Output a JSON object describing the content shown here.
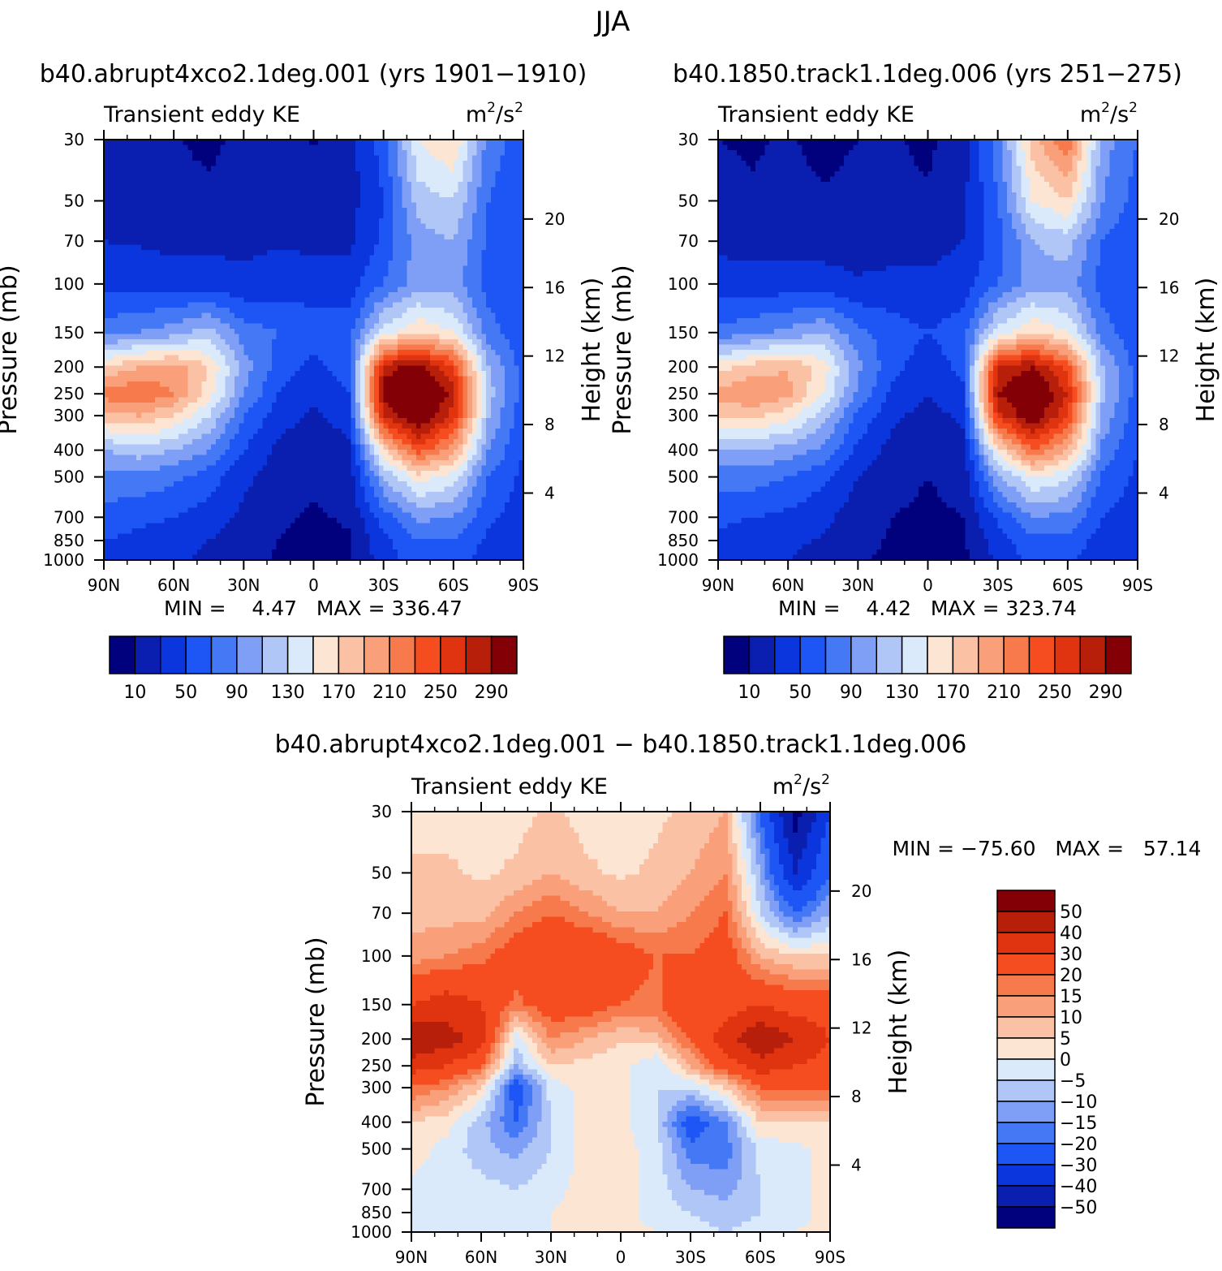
{
  "figure_title": "JJA",
  "chart_data": [
    {
      "id": "panel-a",
      "type": "heatmap",
      "title": "b40.abrupt4xco2.1deg.001 (yrs 1901−1910)",
      "left_label": "Transient eddy KE",
      "units_base": "m",
      "units_sup1": "2",
      "units_mid": "/s",
      "units_sup2": "2",
      "ylabel": "Pressure (mb)",
      "ylabel_right": "Height (km)",
      "x_ticks": [
        "90N",
        "60N",
        "30N",
        "0",
        "30S",
        "60S",
        "90S"
      ],
      "y_ticks": [
        30,
        50,
        70,
        100,
        150,
        200,
        250,
        300,
        400,
        500,
        700,
        850,
        1000
      ],
      "height_ticks": [
        4,
        8,
        12,
        16,
        20
      ],
      "stats": "MIN =    4.47   MAX = 336.47",
      "field": {
        "x_lat": [
          90,
          75,
          60,
          45,
          30,
          15,
          0,
          -15,
          -30,
          -45,
          -60,
          -75,
          -90
        ],
        "p_levels": [
          30,
          50,
          70,
          100,
          150,
          200,
          250,
          300,
          400,
          500,
          700,
          850,
          1000
        ],
        "values": [
          [
            15,
            10,
            12,
            5,
            15,
            22,
            8,
            20,
            60,
            150,
            170,
            80,
            60
          ],
          [
            20,
            18,
            15,
            15,
            20,
            25,
            18,
            22,
            50,
            120,
            130,
            70,
            55
          ],
          [
            30,
            28,
            25,
            25,
            25,
            28,
            25,
            25,
            55,
            100,
            110,
            65,
            55
          ],
          [
            45,
            42,
            40,
            40,
            35,
            40,
            40,
            40,
            70,
            100,
            100,
            60,
            50
          ],
          [
            80,
            90,
            100,
            120,
            80,
            70,
            60,
            60,
            140,
            170,
            150,
            80,
            55
          ],
          [
            170,
            190,
            200,
            170,
            100,
            60,
            45,
            60,
            280,
            300,
            250,
            110,
            60
          ],
          [
            220,
            230,
            210,
            160,
            90,
            50,
            35,
            50,
            300,
            336,
            280,
            120,
            60
          ],
          [
            180,
            190,
            170,
            130,
            70,
            40,
            25,
            40,
            270,
            320,
            260,
            110,
            55
          ],
          [
            110,
            120,
            110,
            90,
            50,
            25,
            15,
            25,
            170,
            240,
            200,
            90,
            50
          ],
          [
            85,
            85,
            75,
            60,
            35,
            18,
            12,
            18,
            110,
            160,
            140,
            70,
            45
          ],
          [
            60,
            55,
            50,
            40,
            25,
            12,
            8,
            12,
            60,
            95,
            90,
            55,
            40
          ],
          [
            50,
            45,
            40,
            30,
            18,
            10,
            6,
            8,
            45,
            70,
            70,
            45,
            35
          ],
          [
            45,
            40,
            35,
            25,
            15,
            8,
            5,
            6,
            40,
            60,
            60,
            40,
            30
          ]
        ]
      }
    },
    {
      "id": "panel-b",
      "type": "heatmap",
      "title": "b40.1850.track1.1deg.006 (yrs 251−275)",
      "left_label": "Transient eddy KE",
      "units_base": "m",
      "units_sup1": "2",
      "units_mid": "/s",
      "units_sup2": "2",
      "ylabel": "Pressure (mb)",
      "ylabel_right": "Height (km)",
      "x_ticks": [
        "90N",
        "60N",
        "30N",
        "0",
        "30S",
        "60S",
        "90S"
      ],
      "y_ticks": [
        30,
        50,
        70,
        100,
        150,
        200,
        250,
        300,
        400,
        500,
        700,
        850,
        1000
      ],
      "height_ticks": [
        4,
        8,
        12,
        16,
        20
      ],
      "stats": "MIN =    4.42   MAX = 323.74",
      "field": {
        "x_lat": [
          90,
          75,
          60,
          45,
          30,
          15,
          0,
          -15,
          -30,
          -45,
          -60,
          -75,
          -90
        ],
        "p_levels": [
          30,
          50,
          70,
          100,
          150,
          200,
          250,
          300,
          400,
          500,
          700,
          850,
          1000
        ],
        "values": [
          [
            10,
            8,
            12,
            5,
            10,
            12,
            6,
            20,
            80,
            180,
            230,
            100,
            70
          ],
          [
            15,
            12,
            15,
            12,
            15,
            15,
            12,
            25,
            70,
            150,
            170,
            90,
            60
          ],
          [
            25,
            22,
            22,
            22,
            22,
            22,
            22,
            30,
            60,
            110,
            120,
            70,
            55
          ],
          [
            40,
            38,
            38,
            38,
            32,
            35,
            35,
            40,
            70,
            100,
            100,
            60,
            50
          ],
          [
            75,
            85,
            95,
            110,
            75,
            60,
            50,
            60,
            140,
            170,
            150,
            80,
            55
          ],
          [
            160,
            180,
            190,
            160,
            95,
            55,
            40,
            55,
            270,
            290,
            240,
            110,
            60
          ],
          [
            200,
            210,
            195,
            150,
            85,
            45,
            30,
            45,
            290,
            323,
            270,
            115,
            60
          ],
          [
            170,
            175,
            160,
            120,
            65,
            35,
            22,
            35,
            260,
            310,
            250,
            105,
            55
          ],
          [
            105,
            110,
            100,
            85,
            45,
            22,
            12,
            22,
            160,
            230,
            190,
            85,
            50
          ],
          [
            80,
            80,
            70,
            55,
            30,
            15,
            10,
            15,
            105,
            150,
            135,
            65,
            45
          ],
          [
            55,
            50,
            45,
            35,
            20,
            10,
            7,
            10,
            55,
            90,
            85,
            50,
            40
          ],
          [
            45,
            40,
            35,
            28,
            15,
            8,
            5,
            7,
            40,
            65,
            65,
            40,
            35
          ],
          [
            40,
            35,
            30,
            22,
            12,
            7,
            4,
            5,
            35,
            55,
            55,
            35,
            30
          ]
        ]
      }
    },
    {
      "id": "panel-c",
      "type": "heatmap",
      "title": "b40.abrupt4xco2.1deg.001 − b40.1850.track1.1deg.006",
      "left_label": "Transient eddy KE",
      "units_base": "m",
      "units_sup1": "2",
      "units_mid": "/s",
      "units_sup2": "2",
      "ylabel": "Pressure (mb)",
      "ylabel_right": "Height (km)",
      "x_ticks": [
        "90N",
        "60N",
        "30N",
        "0",
        "30S",
        "60S",
        "90S"
      ],
      "y_ticks": [
        30,
        50,
        70,
        100,
        150,
        200,
        250,
        300,
        400,
        500,
        700,
        850,
        1000
      ],
      "height_ticks": [
        4,
        8,
        12,
        16,
        20
      ],
      "stats": "MIN = −75.60   MAX =   57.14",
      "field": {
        "x_lat": [
          90,
          75,
          60,
          45,
          30,
          15,
          0,
          -15,
          -30,
          -45,
          -60,
          -75,
          -90
        ],
        "p_levels": [
          30,
          50,
          70,
          100,
          150,
          200,
          250,
          300,
          400,
          500,
          700,
          850,
          1000
        ],
        "values": [
          [
            3,
            3,
            3,
            3,
            6,
            3,
            3,
            4,
            6,
            10,
            -20,
            -55,
            -30
          ],
          [
            6,
            6,
            4,
            6,
            10,
            6,
            4,
            6,
            10,
            15,
            -10,
            -40,
            -20
          ],
          [
            8,
            8,
            8,
            15,
            20,
            15,
            10,
            10,
            15,
            20,
            -5,
            -20,
            -10
          ],
          [
            12,
            15,
            18,
            25,
            30,
            30,
            25,
            20,
            20,
            25,
            10,
            5,
            5
          ],
          [
            30,
            35,
            30,
            18,
            25,
            25,
            20,
            18,
            30,
            25,
            30,
            25,
            25
          ],
          [
            50,
            45,
            35,
            -3,
            15,
            10,
            5,
            8,
            20,
            35,
            50,
            40,
            30
          ],
          [
            35,
            30,
            20,
            -10,
            5,
            3,
            2,
            -5,
            10,
            25,
            35,
            30,
            25
          ],
          [
            20,
            15,
            5,
            -25,
            -3,
            2,
            2,
            -5,
            -5,
            5,
            20,
            20,
            20
          ],
          [
            5,
            2,
            -8,
            -20,
            -5,
            2,
            2,
            -5,
            -25,
            -15,
            5,
            5,
            5
          ],
          [
            3,
            -2,
            -8,
            -12,
            -5,
            2,
            2,
            -2,
            -18,
            -18,
            -3,
            -2,
            3
          ],
          [
            -2,
            -2,
            -3,
            -5,
            -2,
            2,
            2,
            -2,
            -10,
            -12,
            -5,
            -2,
            2
          ],
          [
            -2,
            -2,
            -2,
            -2,
            0,
            2,
            2,
            -2,
            -5,
            -8,
            -5,
            -2,
            2
          ],
          [
            -2,
            -2,
            -2,
            0,
            0,
            2,
            2,
            0,
            -3,
            -5,
            -3,
            0,
            2
          ]
        ]
      }
    }
  ],
  "colorbar_abs": {
    "levels": [
      10,
      30,
      50,
      70,
      90,
      110,
      130,
      150,
      170,
      190,
      210,
      230,
      250,
      270,
      290
    ],
    "labels": [
      "10",
      "50",
      "90",
      "130",
      "170",
      "210",
      "250",
      "290"
    ],
    "colors": [
      "#01007d",
      "#0a1eb0",
      "#0b35dd",
      "#1e56f5",
      "#4578f5",
      "#7f9ef5",
      "#b0c6f7",
      "#dbeafb",
      "#fde5d3",
      "#fbc1a4",
      "#f9a07b",
      "#f77a4c",
      "#f54d1f",
      "#e03310",
      "#b71f0b",
      "#830007"
    ]
  },
  "colorbar_diff": {
    "levels": [
      -50,
      -40,
      -30,
      -20,
      -15,
      -10,
      -5,
      0,
      5,
      10,
      15,
      20,
      30,
      40,
      50
    ],
    "labels": [
      "50",
      "40",
      "30",
      "20",
      "15",
      "10",
      "5",
      "0",
      "−5",
      "−10",
      "−15",
      "−20",
      "−30",
      "−40",
      "−50"
    ],
    "colors": [
      "#01007d",
      "#0a1eb0",
      "#0b35dd",
      "#1e56f5",
      "#4578f5",
      "#7f9ef5",
      "#b0c6f7",
      "#dbeafb",
      "#fde5d3",
      "#fbc1a4",
      "#f9a07b",
      "#f77a4c",
      "#f54d1f",
      "#e03310",
      "#b71f0b",
      "#830007"
    ]
  }
}
